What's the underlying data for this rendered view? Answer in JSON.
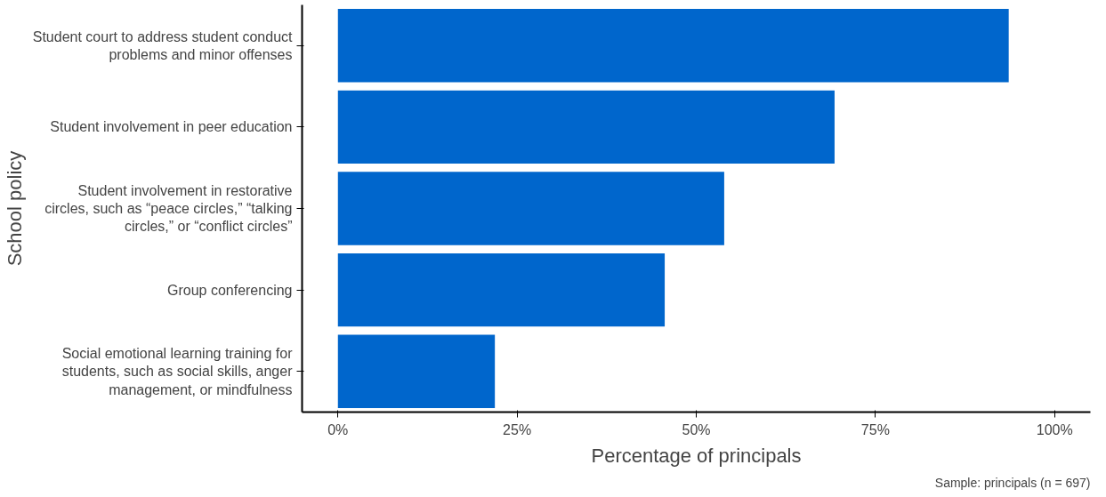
{
  "chart_data": {
    "type": "bar",
    "orientation": "horizontal",
    "xlabel": "Percentage of principals",
    "ylabel": "School policy",
    "categories": [
      "Student court to address student conduct problems and minor offenses",
      "Student involvement in peer education",
      "Student involvement in restorative circles, such as “peace circles,” “talking circles,” or “conflict circles”",
      "Group conferencing",
      "Social emotional learning training for students, such as social skills, anger management, or mindfulness"
    ],
    "values": [
      93.6,
      69.3,
      53.9,
      45.6,
      21.9
    ],
    "color": "#0066cc",
    "xlim": [
      -5,
      105
    ],
    "xticks": [
      {
        "value": 0,
        "label": "0%"
      },
      {
        "value": 25,
        "label": "25%"
      },
      {
        "value": 50,
        "label": "50%"
      },
      {
        "value": 75,
        "label": "75%"
      },
      {
        "value": 100,
        "label": "100%"
      }
    ],
    "grid": false,
    "annotations": [
      "Sample: principals (n = 697)"
    ]
  }
}
